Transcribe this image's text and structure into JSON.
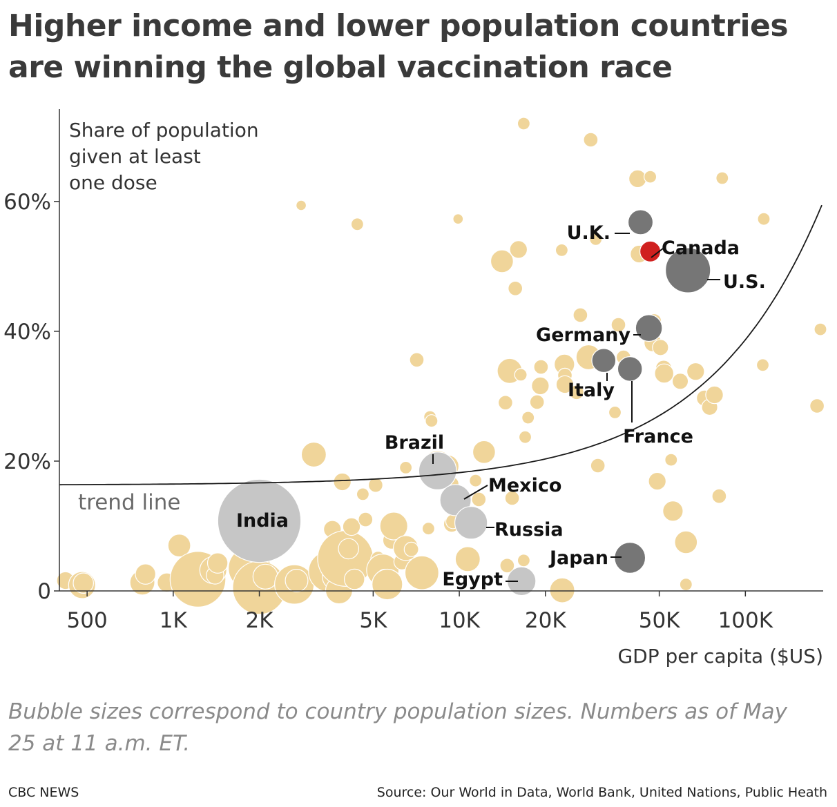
{
  "header": {
    "title": "Higher income and lower population countries are winning the global vaccination race"
  },
  "chart_data": {
    "type": "scatter",
    "title": "Higher income and lower population countries are winning the global vaccination race",
    "ylabel": "Share of population given at least one dose",
    "xlabel": "GDP per capita ($US)",
    "x_scale": "log",
    "xlim": [
      400,
      185000
    ],
    "ylim": [
      0,
      73
    ],
    "x_ticks": [
      {
        "value": 500,
        "label": "500"
      },
      {
        "value": 1000,
        "label": "1K"
      },
      {
        "value": 2000,
        "label": "2K"
      },
      {
        "value": 5000,
        "label": "5K"
      },
      {
        "value": 10000,
        "label": "10K"
      },
      {
        "value": 20000,
        "label": "20K"
      },
      {
        "value": 50000,
        "label": "50K"
      },
      {
        "value": 100000,
        "label": "100K"
      }
    ],
    "y_ticks": [
      {
        "value": 0,
        "label": "0"
      },
      {
        "value": 20,
        "label": "20%"
      },
      {
        "value": 40,
        "label": "40%"
      },
      {
        "value": 60,
        "label": "60%"
      }
    ],
    "grid": false,
    "trend_line_label": "trend line",
    "colors": {
      "other": "#f0d59a",
      "highlight_light": "#c6c6c6",
      "highlight_dark": "#767676",
      "canada": "#d0201f",
      "trend": "#1a1a1a"
    },
    "highlighted": [
      {
        "name": "India",
        "x": 2000,
        "y": 10.8,
        "population_m": 1380,
        "shade": "light"
      },
      {
        "name": "Brazil",
        "x": 8400,
        "y": 18.5,
        "population_m": 213,
        "shade": "light"
      },
      {
        "name": "Mexico",
        "x": 9700,
        "y": 14.0,
        "population_m": 129,
        "shade": "light"
      },
      {
        "name": "Russia",
        "x": 11000,
        "y": 10.5,
        "population_m": 146,
        "shade": "light"
      },
      {
        "name": "Egypt",
        "x": 16500,
        "y": 1.5,
        "population_m": 102,
        "shade": "light"
      },
      {
        "name": "U.K.",
        "x": 43000,
        "y": 56.8,
        "population_m": 67,
        "shade": "dark"
      },
      {
        "name": "Canada",
        "x": 46500,
        "y": 52.3,
        "population_m": 38,
        "shade": "canada"
      },
      {
        "name": "U.S.",
        "x": 63000,
        "y": 49.4,
        "population_m": 331,
        "shade": "dark"
      },
      {
        "name": "Germany",
        "x": 46000,
        "y": 40.5,
        "population_m": 83,
        "shade": "dark"
      },
      {
        "name": "Italy",
        "x": 32000,
        "y": 35.5,
        "population_m": 60,
        "shade": "dark"
      },
      {
        "name": "France",
        "x": 39500,
        "y": 34.2,
        "population_m": 65,
        "shade": "dark"
      },
      {
        "name": "Japan",
        "x": 39500,
        "y": 5.1,
        "population_m": 126,
        "shade": "dark"
      }
    ],
    "others": [
      [
        420,
        1.6,
        6
      ],
      [
        480,
        0.9,
        14
      ],
      [
        485,
        1.2,
        8
      ],
      [
        780,
        1.3,
        12
      ],
      [
        800,
        2.6,
        8
      ],
      [
        950,
        1.3,
        7
      ],
      [
        1050,
        7.0,
        10
      ],
      [
        1220,
        1.8,
        60
      ],
      [
        1380,
        3.2,
        14
      ],
      [
        1400,
        2.4,
        6
      ],
      [
        1430,
        4.3,
        8
      ],
      [
        1750,
        13.6,
        9
      ],
      [
        1850,
        3.5,
        35
      ],
      [
        1900,
        1.8,
        12
      ],
      [
        2000,
        0.5,
        55
      ],
      [
        2100,
        2.2,
        12
      ],
      [
        2400,
        8.1,
        6
      ],
      [
        2650,
        1.0,
        30
      ],
      [
        2700,
        1.6,
        10
      ],
      [
        2800,
        59.4,
        2
      ],
      [
        3100,
        21.0,
        12
      ],
      [
        3400,
        4.0,
        6
      ],
      [
        3500,
        3.0,
        32
      ],
      [
        3600,
        9.5,
        6
      ],
      [
        3700,
        2.2,
        14
      ],
      [
        3800,
        0.1,
        14
      ],
      [
        3900,
        16.8,
        6
      ],
      [
        4000,
        5.0,
        60
      ],
      [
        4100,
        6.5,
        8
      ],
      [
        4200,
        9.9,
        6
      ],
      [
        4300,
        1.8,
        8
      ],
      [
        4400,
        56.5,
        3
      ],
      [
        4600,
        14.9,
        3
      ],
      [
        4700,
        11.0,
        4
      ],
      [
        5100,
        16.3,
        4
      ],
      [
        5200,
        5.0,
        4
      ],
      [
        5400,
        3.2,
        20
      ],
      [
        5500,
        2.0,
        6
      ],
      [
        5600,
        1.0,
        18
      ],
      [
        5700,
        10.6,
        3
      ],
      [
        5800,
        7.8,
        6
      ],
      [
        5900,
        10.0,
        15
      ],
      [
        6300,
        4.5,
        5
      ],
      [
        6500,
        6.6,
        12
      ],
      [
        6500,
        19.0,
        3
      ],
      [
        6800,
        6.4,
        4
      ],
      [
        7100,
        35.6,
        4
      ],
      [
        7400,
        2.8,
        22
      ],
      [
        7800,
        9.6,
        3
      ],
      [
        7900,
        26.8,
        3
      ],
      [
        8000,
        26.2,
        3
      ],
      [
        8400,
        19.0,
        22
      ],
      [
        9100,
        19.2,
        10
      ],
      [
        9400,
        16.5,
        4
      ],
      [
        9400,
        10.3,
        5
      ],
      [
        9500,
        10.7,
        4
      ],
      [
        9900,
        57.3,
        2
      ],
      [
        10300,
        12.0,
        3
      ],
      [
        10700,
        4.9,
        12
      ],
      [
        11400,
        17.0,
        3
      ],
      [
        11700,
        14.1,
        4
      ],
      [
        12200,
        21.4,
        10
      ],
      [
        14100,
        50.8,
        10
      ],
      [
        14500,
        29.0,
        4
      ],
      [
        14700,
        3.9,
        4
      ],
      [
        15000,
        33.9,
        12
      ],
      [
        15300,
        14.3,
        4
      ],
      [
        15700,
        46.6,
        4
      ],
      [
        16100,
        52.6,
        6
      ],
      [
        16400,
        33.3,
        3
      ],
      [
        16800,
        72.0,
        3
      ],
      [
        16800,
        4.7,
        3
      ],
      [
        17000,
        23.7,
        3
      ],
      [
        17400,
        26.7,
        3
      ],
      [
        18700,
        29.1,
        4
      ],
      [
        19200,
        31.6,
        6
      ],
      [
        19300,
        34.5,
        4
      ],
      [
        22800,
        52.5,
        3
      ],
      [
        22900,
        0.1,
        12
      ],
      [
        23300,
        34.9,
        8
      ],
      [
        23400,
        33.2,
        4
      ],
      [
        23400,
        31.8,
        6
      ],
      [
        25700,
        30.6,
        4
      ],
      [
        26500,
        42.5,
        4
      ],
      [
        28300,
        36.0,
        12
      ],
      [
        28800,
        69.5,
        4
      ],
      [
        30000,
        54.2,
        3
      ],
      [
        30500,
        19.3,
        4
      ],
      [
        35000,
        27.5,
        3
      ],
      [
        36000,
        41.0,
        4
      ],
      [
        37500,
        36.0,
        4
      ],
      [
        40400,
        5.7,
        3
      ],
      [
        42000,
        63.5,
        6
      ],
      [
        42500,
        51.9,
        6
      ],
      [
        46500,
        63.8,
        3
      ],
      [
        47500,
        38.2,
        6
      ],
      [
        48000,
        41.6,
        4
      ],
      [
        49200,
        16.9,
        6
      ],
      [
        50500,
        37.5,
        5
      ],
      [
        51800,
        34.3,
        5
      ],
      [
        52000,
        33.5,
        7
      ],
      [
        55000,
        20.2,
        3
      ],
      [
        55800,
        12.3,
        8
      ],
      [
        59200,
        32.3,
        5
      ],
      [
        62000,
        7.5,
        10
      ],
      [
        62000,
        47.0,
        4
      ],
      [
        62000,
        1.0,
        3
      ],
      [
        65800,
        48.4,
        3
      ],
      [
        67000,
        33.8,
        6
      ],
      [
        72000,
        29.7,
        5
      ],
      [
        75000,
        28.3,
        5
      ],
      [
        78000,
        30.2,
        6
      ],
      [
        81000,
        14.6,
        4
      ],
      [
        83000,
        63.6,
        3
      ],
      [
        115000,
        34.8,
        3
      ],
      [
        116000,
        57.3,
        3
      ],
      [
        178000,
        28.5,
        4
      ],
      [
        183000,
        40.3,
        3
      ]
    ]
  },
  "annotations": {
    "india": "India",
    "brazil": "Brazil",
    "mexico": "Mexico",
    "russia": "Russia",
    "egypt": "Egypt",
    "uk": "U.K.",
    "canada": "Canada",
    "us": "U.S.",
    "germany": "Germany",
    "italy": "Italy",
    "france": "France",
    "japan": "Japan"
  },
  "footer": {
    "note": "Bubble sizes correspond to country population sizes. Numbers as of May 25 at 11 a.m. ET.",
    "brand": "CBC NEWS",
    "source": "Source: Our World in Data, World Bank, United Nations, Public Heath"
  }
}
